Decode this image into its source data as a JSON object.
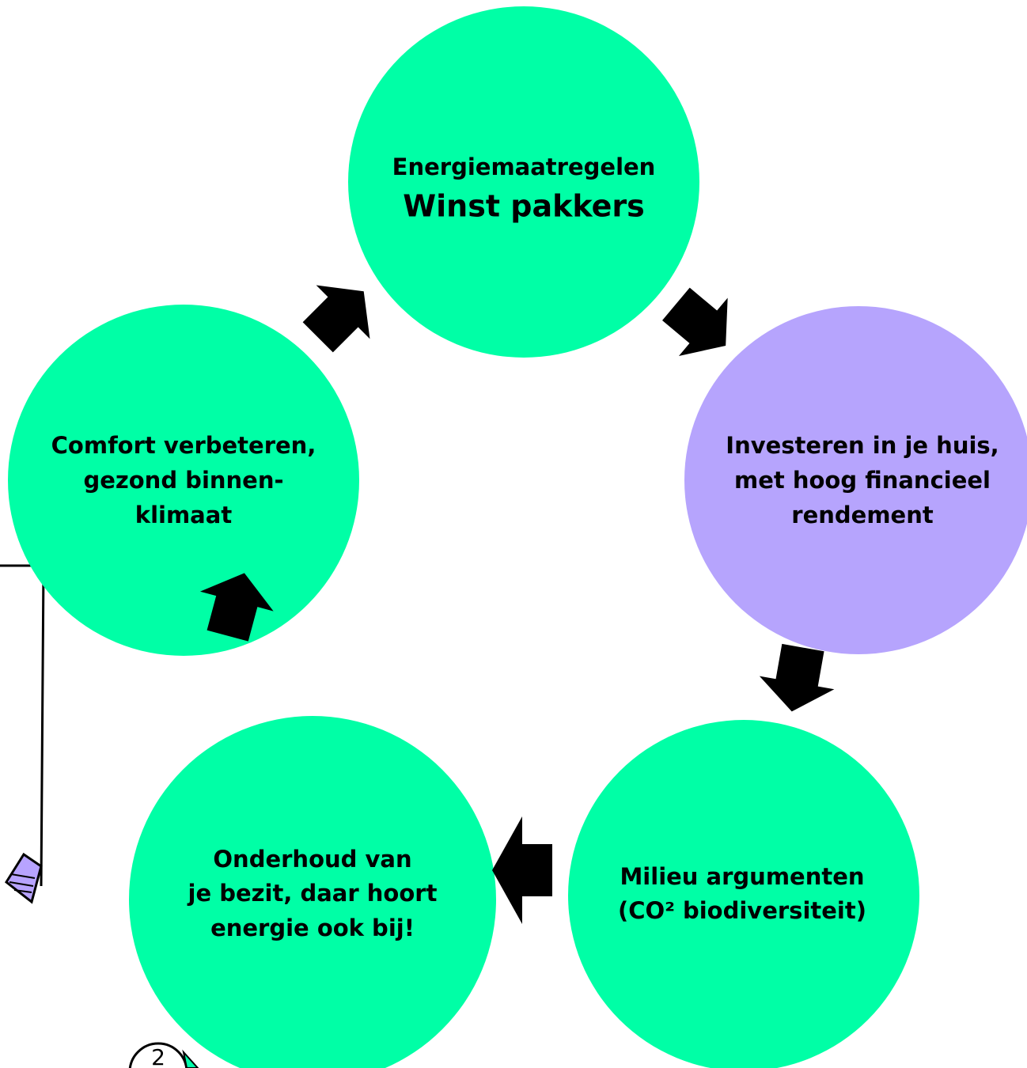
{
  "nodes": [
    {
      "lines": [
        "Energiemaatregelen",
        "Winst pakkers"
      ]
    },
    {
      "lines": [
        "Investeren in je huis,",
        "met hoog financieel",
        "rendement"
      ]
    },
    {
      "lines": [
        "Milieu argumenten",
        "(CO² biodiversiteit)"
      ]
    },
    {
      "lines": [
        "Onderhoud van",
        "je bezit, daar hoort",
        "energie ook bij!"
      ]
    },
    {
      "lines": [
        "Comfort verbeteren,",
        "gezond binnen-",
        "klimaat"
      ]
    }
  ],
  "page_number": "2"
}
